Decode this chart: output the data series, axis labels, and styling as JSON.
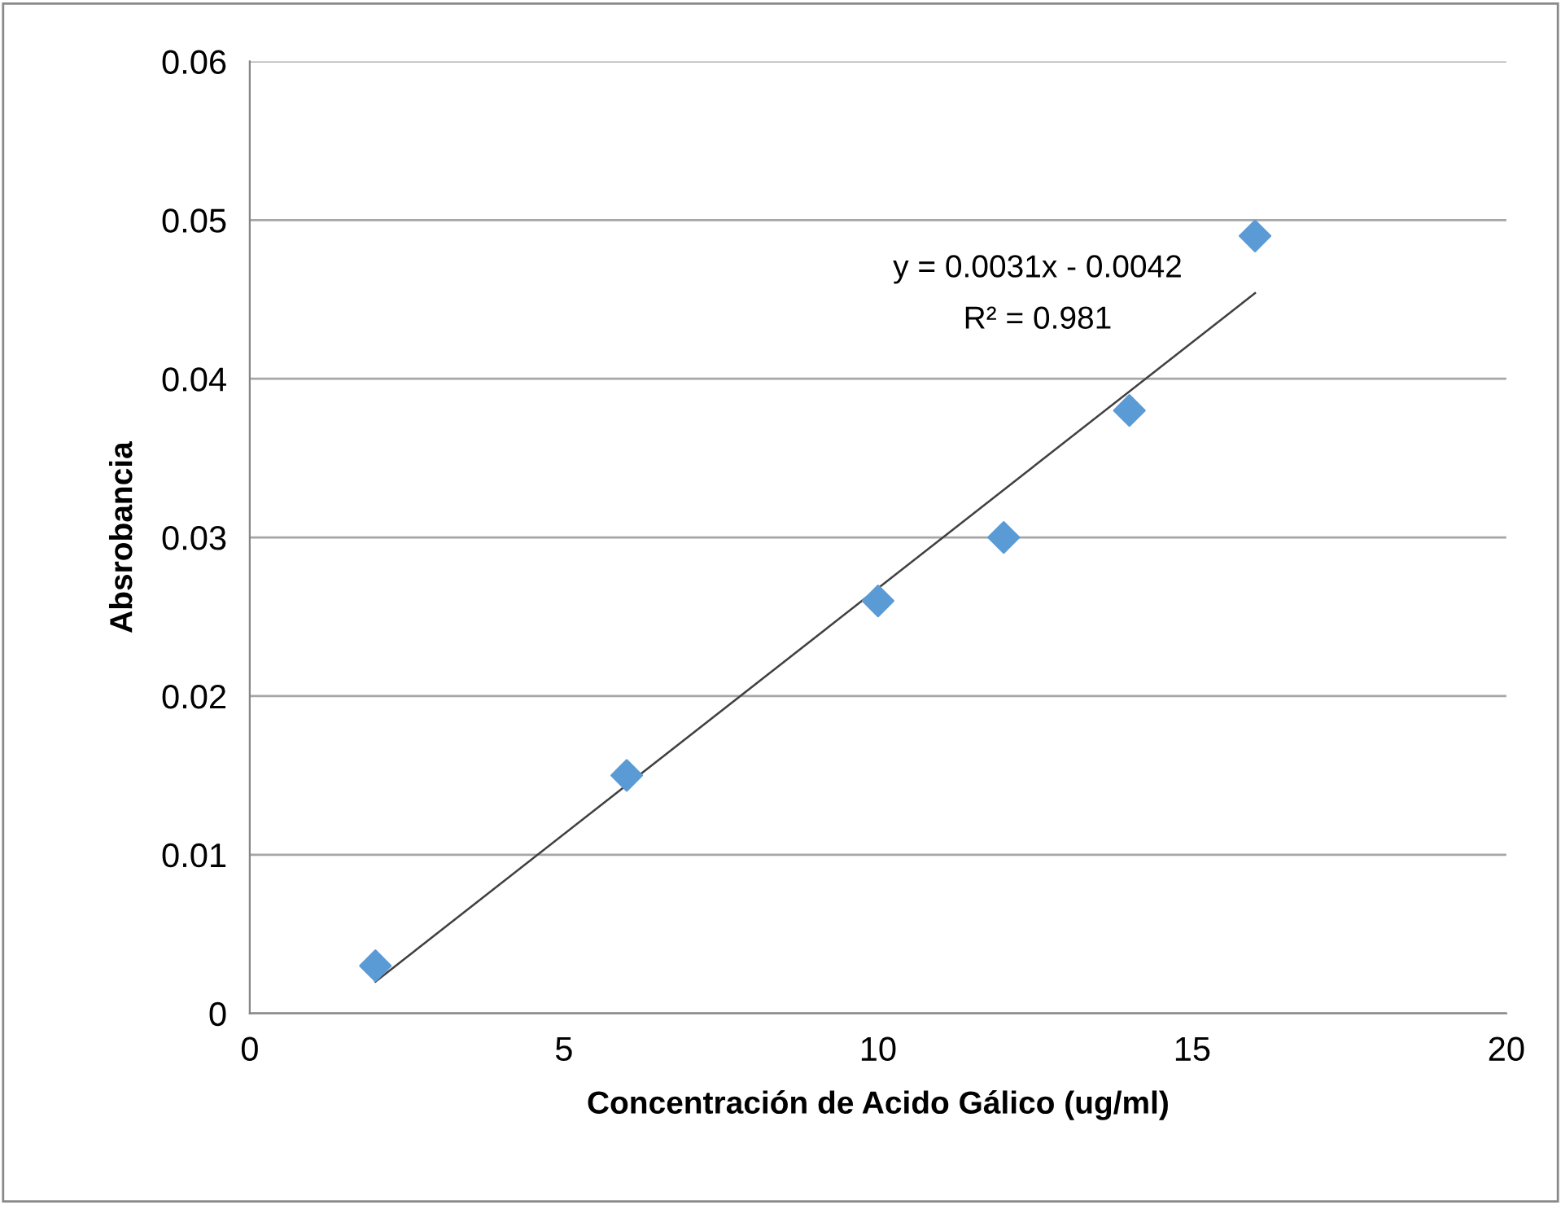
{
  "chart_data": {
    "type": "scatter",
    "xlabel": "Concentración de Acido Gálico (ug/ml)",
    "ylabel": "Absrobancia",
    "annotations": [
      "y = 0.0031x - 0.0042",
      "R² = 0.981"
    ],
    "series": [
      {
        "color": "#5b9bd5",
        "marker": "diamond",
        "x": [
          2,
          6,
          10,
          12,
          14,
          16
        ],
        "values": [
          0.003,
          0.015,
          0.026,
          0.03,
          0.038,
          0.049
        ]
      },
      {
        "type": "line",
        "color": "#404040",
        "marker": "none",
        "line_style": "solid",
        "x": [
          2,
          16
        ],
        "values": [
          0.002,
          0.0454
        ]
      }
    ],
    "xlim": [
      0,
      20
    ],
    "xticks": [
      0,
      5,
      10,
      15,
      20
    ],
    "ylim": [
      0,
      0.06
    ],
    "yticks": [
      0,
      0.01,
      0.02,
      0.03,
      0.04,
      0.05,
      0.06
    ],
    "grid": "y",
    "legend": false
  }
}
